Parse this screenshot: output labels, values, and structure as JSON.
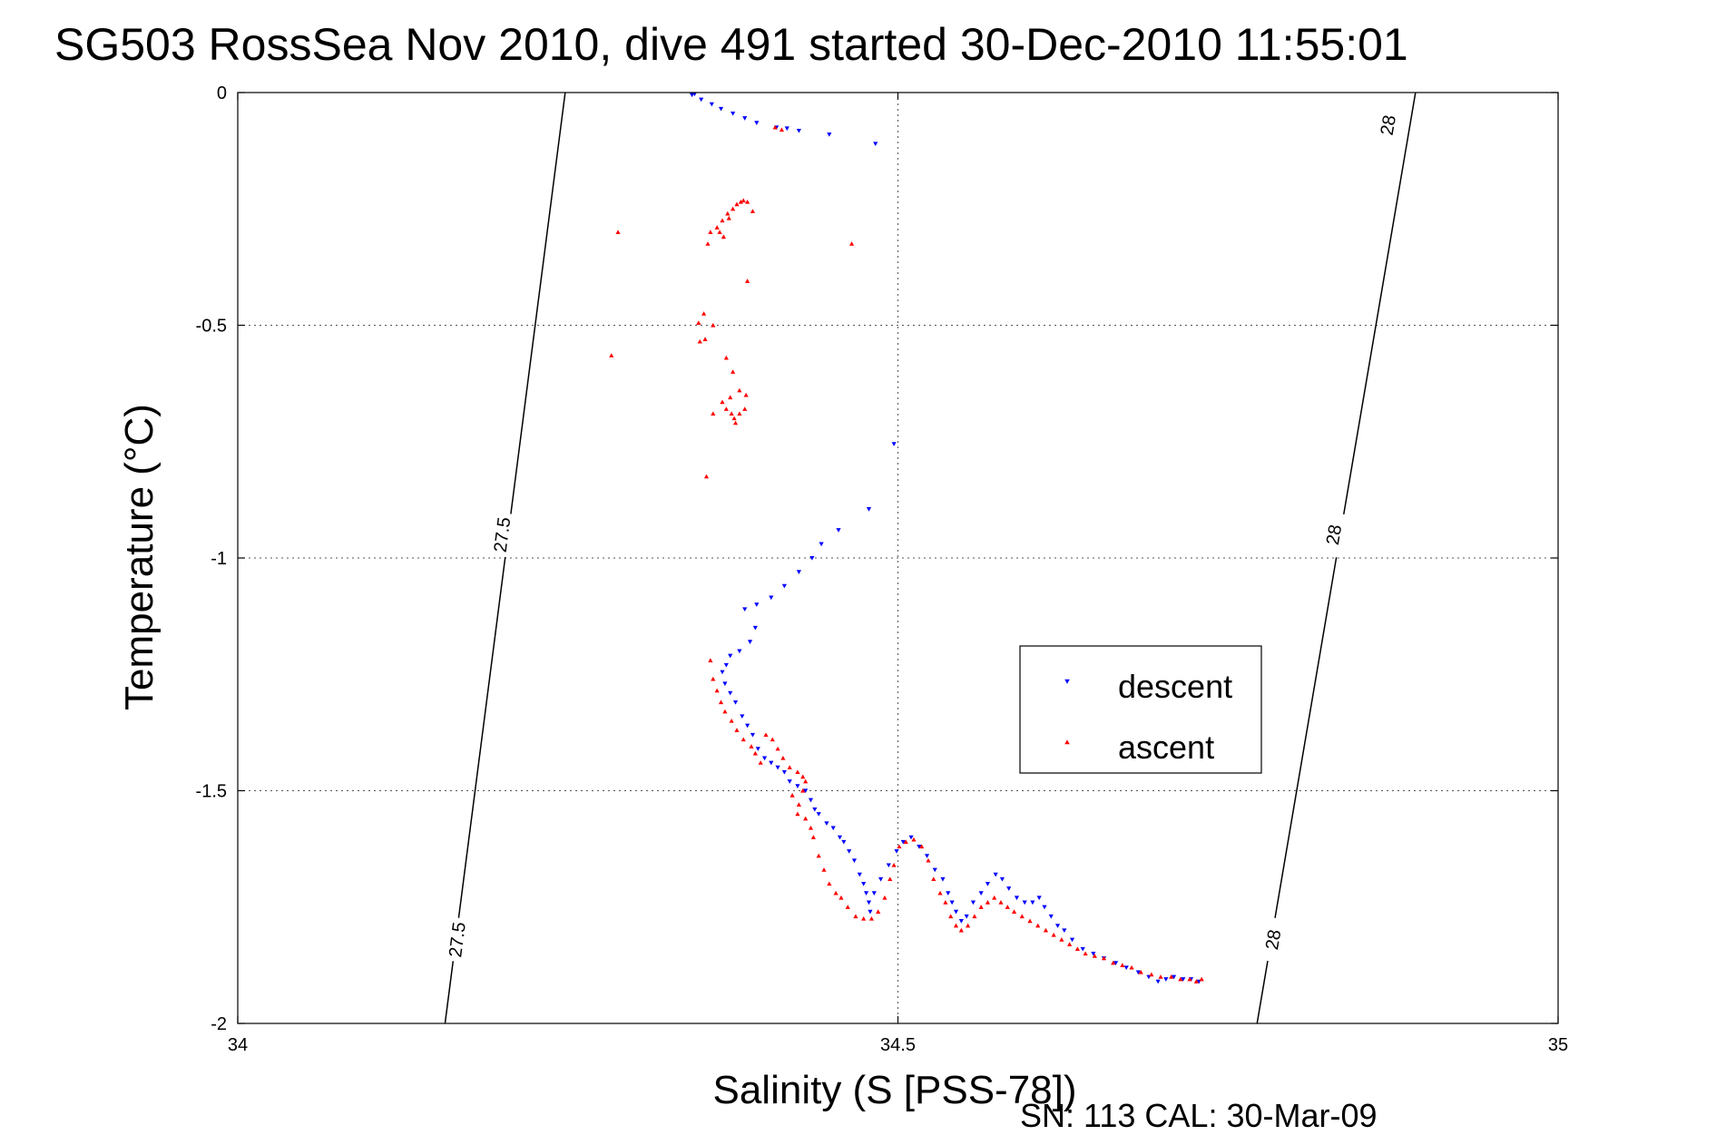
{
  "chart_data": {
    "type": "scatter",
    "title": "SG503 RossSea Nov 2010, dive 491 started 30-Dec-2010 11:55:01",
    "xlabel": "Salinity (S [PSS-78])",
    "ylabel": "Temperature (°C)",
    "xlim": [
      34,
      35
    ],
    "ylim": [
      -2,
      0
    ],
    "x_ticks": [
      34,
      34.5,
      35
    ],
    "y_ticks": [
      0,
      -0.5,
      -1,
      -1.5,
      -2
    ],
    "x_tick_labels": [
      "34",
      "34.5",
      "35"
    ],
    "y_tick_labels": [
      "0",
      "-0.5",
      "-1",
      "-1.5",
      "-2"
    ],
    "grid": true,
    "legend_position": "right",
    "note": "SN: 113  CAL: 30-Mar-09",
    "contours": [
      {
        "label": "27.5",
        "points": [
          [
            34.248,
            0
          ],
          [
            34.157,
            -2
          ]
        ],
        "labels_at": [
          [
            34.2,
            -0.95
          ],
          [
            34.166,
            -1.82
          ]
        ]
      },
      {
        "label": "28",
        "points": [
          [
            34.892,
            0
          ],
          [
            34.772,
            -2
          ]
        ],
        "labels_at": [
          [
            34.871,
            -0.07
          ],
          [
            34.83,
            -0.95
          ],
          [
            34.784,
            -1.82
          ]
        ]
      }
    ],
    "series": [
      {
        "name": "descent",
        "color": "#0000ff",
        "marker": "triangle-down",
        "points": [
          [
            34.344,
            -0.005
          ],
          [
            34.346,
            -0.003
          ],
          [
            34.351,
            -0.015
          ],
          [
            34.359,
            -0.025
          ],
          [
            34.366,
            -0.035
          ],
          [
            34.375,
            -0.045
          ],
          [
            34.384,
            -0.055
          ],
          [
            34.393,
            -0.065
          ],
          [
            34.408,
            -0.075
          ],
          [
            34.416,
            -0.077
          ],
          [
            34.425,
            -0.082
          ],
          [
            34.448,
            -0.09
          ],
          [
            34.483,
            -0.11
          ],
          [
            34.497,
            -0.755
          ],
          [
            34.478,
            -0.895
          ],
          [
            34.455,
            -0.94
          ],
          [
            34.442,
            -0.97
          ],
          [
            34.435,
            -1.0
          ],
          [
            34.425,
            -1.03
          ],
          [
            34.414,
            -1.06
          ],
          [
            34.404,
            -1.085
          ],
          [
            34.393,
            -1.1
          ],
          [
            34.384,
            -1.11
          ],
          [
            34.392,
            -1.15
          ],
          [
            34.388,
            -1.18
          ],
          [
            34.38,
            -1.2
          ],
          [
            34.373,
            -1.21
          ],
          [
            34.37,
            -1.23
          ],
          [
            34.367,
            -1.245
          ],
          [
            34.369,
            -1.27
          ],
          [
            34.373,
            -1.29
          ],
          [
            34.377,
            -1.31
          ],
          [
            34.382,
            -1.34
          ],
          [
            34.386,
            -1.36
          ],
          [
            34.39,
            -1.38
          ],
          [
            34.394,
            -1.41
          ],
          [
            34.399,
            -1.43
          ],
          [
            34.404,
            -1.44
          ],
          [
            34.409,
            -1.45
          ],
          [
            34.414,
            -1.46
          ],
          [
            34.418,
            -1.48
          ],
          [
            34.424,
            -1.49
          ],
          [
            34.43,
            -1.5
          ],
          [
            34.434,
            -1.52
          ],
          [
            34.437,
            -1.54
          ],
          [
            34.44,
            -1.55
          ],
          [
            34.446,
            -1.57
          ],
          [
            34.451,
            -1.58
          ],
          [
            34.456,
            -1.6
          ],
          [
            34.459,
            -1.61
          ],
          [
            34.463,
            -1.63
          ],
          [
            34.467,
            -1.65
          ],
          [
            34.471,
            -1.68
          ],
          [
            34.474,
            -1.7
          ],
          [
            34.476,
            -1.72
          ],
          [
            34.478,
            -1.74
          ],
          [
            34.479,
            -1.76
          ],
          [
            34.482,
            -1.72
          ],
          [
            34.487,
            -1.69
          ],
          [
            34.493,
            -1.66
          ],
          [
            34.499,
            -1.63
          ],
          [
            34.504,
            -1.61
          ],
          [
            34.51,
            -1.6
          ],
          [
            34.516,
            -1.62
          ],
          [
            34.522,
            -1.64
          ],
          [
            34.528,
            -1.67
          ],
          [
            34.534,
            -1.69
          ],
          [
            34.538,
            -1.72
          ],
          [
            34.541,
            -1.74
          ],
          [
            34.544,
            -1.76
          ],
          [
            34.548,
            -1.78
          ],
          [
            34.552,
            -1.77
          ],
          [
            34.557,
            -1.74
          ],
          [
            34.563,
            -1.72
          ],
          [
            34.568,
            -1.7
          ],
          [
            34.574,
            -1.68
          ],
          [
            34.579,
            -1.69
          ],
          [
            34.584,
            -1.71
          ],
          [
            34.59,
            -1.73
          ],
          [
            34.596,
            -1.74
          ],
          [
            34.602,
            -1.74
          ],
          [
            34.607,
            -1.73
          ],
          [
            34.611,
            -1.75
          ],
          [
            34.616,
            -1.77
          ],
          [
            34.621,
            -1.79
          ],
          [
            34.626,
            -1.8
          ],
          [
            34.632,
            -1.82
          ],
          [
            34.64,
            -1.84
          ],
          [
            34.648,
            -1.85
          ],
          [
            34.656,
            -1.86
          ],
          [
            34.665,
            -1.87
          ],
          [
            34.673,
            -1.88
          ],
          [
            34.682,
            -1.89
          ],
          [
            34.69,
            -1.9
          ],
          [
            34.697,
            -1.91
          ],
          [
            34.703,
            -1.905
          ],
          [
            34.709,
            -1.9
          ],
          [
            34.716,
            -1.905
          ],
          [
            34.722,
            -1.905
          ],
          [
            34.728,
            -1.91
          ]
        ]
      },
      {
        "name": "ascent",
        "color": "#ff0000",
        "marker": "triangle-up",
        "points": [
          [
            34.407,
            -0.075
          ],
          [
            34.412,
            -0.08
          ],
          [
            34.465,
            -0.325
          ],
          [
            34.358,
            -0.3
          ],
          [
            34.363,
            -0.29
          ],
          [
            34.367,
            -0.275
          ],
          [
            34.371,
            -0.26
          ],
          [
            34.375,
            -0.25
          ],
          [
            34.378,
            -0.24
          ],
          [
            34.381,
            -0.235
          ],
          [
            34.383,
            -0.232
          ],
          [
            34.386,
            -0.235
          ],
          [
            34.39,
            -0.255
          ],
          [
            34.372,
            -0.27
          ],
          [
            34.365,
            -0.3
          ],
          [
            34.368,
            -0.31
          ],
          [
            34.356,
            -0.325
          ],
          [
            34.288,
            -0.3
          ],
          [
            34.386,
            -0.405
          ],
          [
            34.353,
            -0.475
          ],
          [
            34.349,
            -0.495
          ],
          [
            34.36,
            -0.5
          ],
          [
            34.354,
            -0.53
          ],
          [
            34.35,
            -0.535
          ],
          [
            34.283,
            -0.565
          ],
          [
            34.37,
            -0.57
          ],
          [
            34.375,
            -0.6
          ],
          [
            34.38,
            -0.64
          ],
          [
            34.385,
            -0.65
          ],
          [
            34.373,
            -0.655
          ],
          [
            34.367,
            -0.665
          ],
          [
            34.37,
            -0.68
          ],
          [
            34.374,
            -0.69
          ],
          [
            34.376,
            -0.7
          ],
          [
            34.38,
            -0.69
          ],
          [
            34.384,
            -0.68
          ],
          [
            34.36,
            -0.69
          ],
          [
            34.377,
            -0.71
          ],
          [
            34.355,
            -0.825
          ],
          [
            34.358,
            -1.22
          ],
          [
            34.36,
            -1.26
          ],
          [
            34.363,
            -1.285
          ],
          [
            34.366,
            -1.31
          ],
          [
            34.369,
            -1.33
          ],
          [
            34.374,
            -1.35
          ],
          [
            34.378,
            -1.37
          ],
          [
            34.383,
            -1.39
          ],
          [
            34.389,
            -1.405
          ],
          [
            34.392,
            -1.42
          ],
          [
            34.396,
            -1.44
          ],
          [
            34.4,
            -1.38
          ],
          [
            34.405,
            -1.39
          ],
          [
            34.409,
            -1.41
          ],
          [
            34.413,
            -1.43
          ],
          [
            34.418,
            -1.45
          ],
          [
            34.424,
            -1.46
          ],
          [
            34.428,
            -1.47
          ],
          [
            34.43,
            -1.48
          ],
          [
            34.428,
            -1.5
          ],
          [
            34.425,
            -1.53
          ],
          [
            34.42,
            -1.51
          ],
          [
            34.424,
            -1.55
          ],
          [
            34.43,
            -1.56
          ],
          [
            34.434,
            -1.58
          ],
          [
            34.436,
            -1.6
          ],
          [
            34.44,
            -1.64
          ],
          [
            34.444,
            -1.67
          ],
          [
            34.448,
            -1.7
          ],
          [
            34.453,
            -1.72
          ],
          [
            34.457,
            -1.73
          ],
          [
            34.462,
            -1.75
          ],
          [
            34.468,
            -1.77
          ],
          [
            34.474,
            -1.775
          ],
          [
            34.48,
            -1.775
          ],
          [
            34.485,
            -1.76
          ],
          [
            34.49,
            -1.73
          ],
          [
            34.494,
            -1.69
          ],
          [
            34.497,
            -1.66
          ],
          [
            34.501,
            -1.62
          ],
          [
            34.506,
            -1.61
          ],
          [
            34.512,
            -1.605
          ],
          [
            34.518,
            -1.62
          ],
          [
            34.523,
            -1.65
          ],
          [
            34.527,
            -1.69
          ],
          [
            34.532,
            -1.72
          ],
          [
            34.536,
            -1.74
          ],
          [
            34.54,
            -1.77
          ],
          [
            34.544,
            -1.79
          ],
          [
            34.548,
            -1.8
          ],
          [
            34.553,
            -1.79
          ],
          [
            34.558,
            -1.77
          ],
          [
            34.563,
            -1.75
          ],
          [
            34.568,
            -1.74
          ],
          [
            34.573,
            -1.73
          ],
          [
            34.578,
            -1.74
          ],
          [
            34.583,
            -1.75
          ],
          [
            34.588,
            -1.76
          ],
          [
            34.594,
            -1.77
          ],
          [
            34.6,
            -1.78
          ],
          [
            34.606,
            -1.79
          ],
          [
            34.612,
            -1.8
          ],
          [
            34.618,
            -1.81
          ],
          [
            34.624,
            -1.82
          ],
          [
            34.63,
            -1.83
          ],
          [
            34.636,
            -1.84
          ],
          [
            34.642,
            -1.85
          ],
          [
            34.649,
            -1.855
          ],
          [
            34.656,
            -1.86
          ],
          [
            34.663,
            -1.87
          ],
          [
            34.67,
            -1.875
          ],
          [
            34.677,
            -1.88
          ],
          [
            34.684,
            -1.89
          ],
          [
            34.692,
            -1.895
          ],
          [
            34.699,
            -1.9
          ],
          [
            34.707,
            -1.9
          ],
          [
            34.714,
            -1.905
          ],
          [
            34.721,
            -1.905
          ],
          [
            34.726,
            -1.91
          ],
          [
            34.73,
            -1.905
          ]
        ]
      }
    ]
  }
}
